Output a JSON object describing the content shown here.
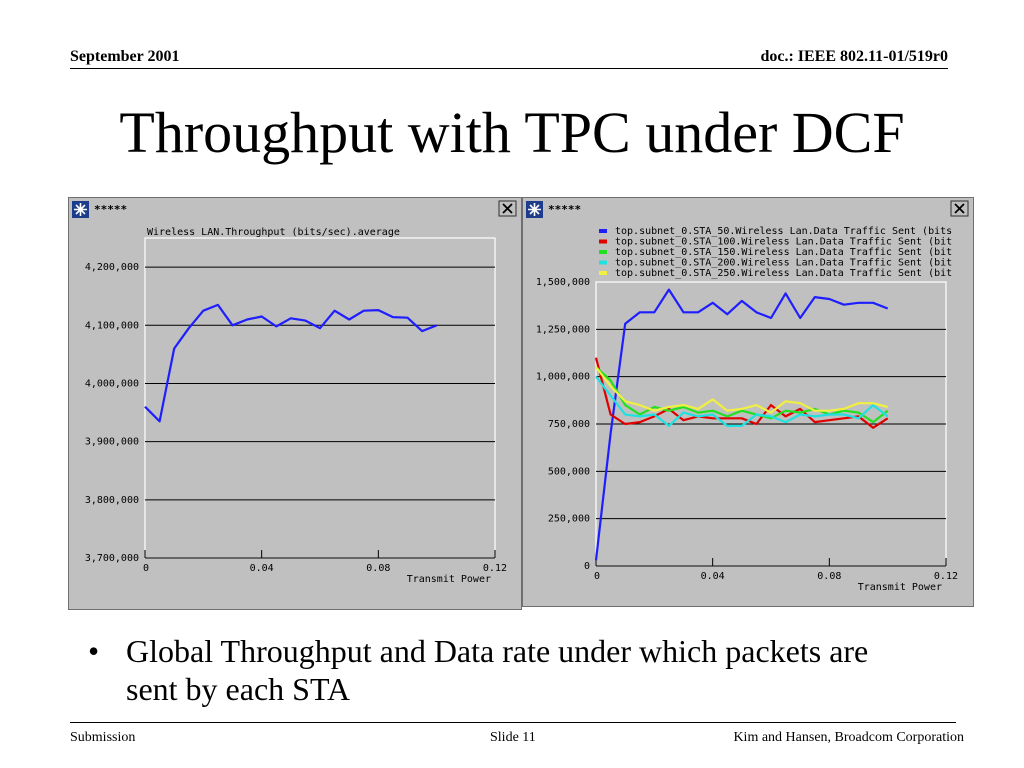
{
  "header": {
    "date": "September 2001",
    "doc_id": "doc.: IEEE 802.11-01/519r0"
  },
  "title": "Throughput with TPC under DCF",
  "windows": [
    {
      "title": "*****"
    },
    {
      "title": "*****"
    }
  ],
  "colors": {
    "blue": "#1e1eff",
    "red": "#e00000",
    "green": "#20e020",
    "cyan": "#20e0e0",
    "yellow": "#f0f040",
    "panel": "#c0c0c0"
  },
  "chart_data": [
    {
      "type": "line",
      "title": "Wireless LAN.Throughput (bits/sec).average",
      "xlabel": "Transmit Power",
      "ylabel": "",
      "xlim": [
        0,
        0.12
      ],
      "ylim": [
        3700000,
        4250000
      ],
      "x_ticks": [
        "0",
        "0.04",
        "0.08",
        "0.12"
      ],
      "y_ticks": [
        "3,700,000",
        "3,800,000",
        "3,900,000",
        "4,000,000",
        "4,100,000",
        "4,200,000"
      ],
      "series": [
        {
          "name": "",
          "color": "#1e1eff",
          "x": [
            0,
            0.005,
            0.01,
            0.015,
            0.02,
            0.025,
            0.03,
            0.035,
            0.04,
            0.045,
            0.05,
            0.055,
            0.06,
            0.065,
            0.07,
            0.075,
            0.08,
            0.085,
            0.09,
            0.095,
            0.1
          ],
          "y": [
            3960000,
            3935000,
            4060000,
            4095000,
            4125000,
            4135000,
            4100000,
            4110000,
            4115000,
            4098000,
            4112000,
            4108000,
            4095000,
            4125000,
            4110000,
            4125000,
            4126000,
            4114000,
            4113000,
            4090000,
            4100000
          ]
        }
      ]
    },
    {
      "type": "line",
      "title": "",
      "xlabel": "Transmit Power",
      "ylabel": "",
      "xlim": [
        0,
        0.12
      ],
      "ylim": [
        0,
        1500000
      ],
      "x_ticks": [
        "0",
        "0.04",
        "0.08",
        "0.12"
      ],
      "y_ticks": [
        "0",
        "250,000",
        "500,000",
        "750,000",
        "1,000,000",
        "1,250,000",
        "1,500,000"
      ],
      "legend_position": "top",
      "series": [
        {
          "name": "top.subnet_0.STA_50.Wireless Lan.Data Traffic Sent (bits",
          "color": "#1e1eff",
          "x": [
            0,
            0.005,
            0.01,
            0.015,
            0.02,
            0.025,
            0.03,
            0.035,
            0.04,
            0.045,
            0.05,
            0.055,
            0.06,
            0.065,
            0.07,
            0.075,
            0.08,
            0.085,
            0.09,
            0.095,
            0.1
          ],
          "y": [
            30000,
            700000,
            1280000,
            1340000,
            1340000,
            1460000,
            1340000,
            1340000,
            1390000,
            1330000,
            1400000,
            1340000,
            1310000,
            1440000,
            1310000,
            1420000,
            1410000,
            1380000,
            1390000,
            1390000,
            1360000
          ]
        },
        {
          "name": "top.subnet_0.STA_100.Wireless Lan.Data Traffic Sent (bit",
          "color": "#e00000",
          "x": [
            0,
            0.005,
            0.01,
            0.015,
            0.02,
            0.025,
            0.03,
            0.035,
            0.04,
            0.045,
            0.05,
            0.055,
            0.06,
            0.065,
            0.07,
            0.075,
            0.08,
            0.085,
            0.09,
            0.095,
            0.1
          ],
          "y": [
            1100000,
            800000,
            750000,
            760000,
            790000,
            830000,
            770000,
            790000,
            780000,
            780000,
            780000,
            750000,
            850000,
            790000,
            830000,
            760000,
            770000,
            780000,
            790000,
            730000,
            780000
          ]
        },
        {
          "name": "top.subnet_0.STA_150.Wireless Lan.Data Traffic Sent (bit",
          "color": "#20e020",
          "x": [
            0,
            0.005,
            0.01,
            0.015,
            0.02,
            0.025,
            0.03,
            0.035,
            0.04,
            0.045,
            0.05,
            0.055,
            0.06,
            0.065,
            0.07,
            0.075,
            0.08,
            0.085,
            0.09,
            0.095,
            0.1
          ],
          "y": [
            1050000,
            980000,
            850000,
            800000,
            840000,
            820000,
            840000,
            810000,
            820000,
            790000,
            820000,
            800000,
            780000,
            820000,
            810000,
            830000,
            800000,
            820000,
            810000,
            760000,
            820000
          ]
        },
        {
          "name": "top.subnet_0.STA_200.Wireless Lan.Data Traffic Sent (bit",
          "color": "#20e0e0",
          "x": [
            0,
            0.005,
            0.01,
            0.015,
            0.02,
            0.025,
            0.03,
            0.035,
            0.04,
            0.045,
            0.05,
            0.055,
            0.06,
            0.065,
            0.07,
            0.075,
            0.08,
            0.085,
            0.09,
            0.095,
            0.1
          ],
          "y": [
            1000000,
            900000,
            800000,
            790000,
            800000,
            740000,
            810000,
            790000,
            800000,
            740000,
            740000,
            800000,
            790000,
            760000,
            800000,
            790000,
            800000,
            800000,
            780000,
            850000,
            790000
          ]
        },
        {
          "name": "top.subnet_0.STA_250.Wireless Lan.Data Traffic Sent (bit",
          "color": "#f0f040",
          "x": [
            0,
            0.005,
            0.01,
            0.015,
            0.02,
            0.025,
            0.03,
            0.035,
            0.04,
            0.045,
            0.05,
            0.055,
            0.06,
            0.065,
            0.07,
            0.075,
            0.08,
            0.085,
            0.09,
            0.095,
            0.1
          ],
          "y": [
            1050000,
            950000,
            870000,
            850000,
            820000,
            840000,
            850000,
            830000,
            880000,
            820000,
            830000,
            850000,
            810000,
            870000,
            860000,
            820000,
            820000,
            830000,
            860000,
            860000,
            840000
          ]
        }
      ]
    }
  ],
  "bullet": "Global Throughput and Data rate under which packets are sent by each STA",
  "footer": {
    "left": "Submission",
    "center": "Slide 11",
    "right": "Kim and Hansen, Broadcom Corporation"
  }
}
